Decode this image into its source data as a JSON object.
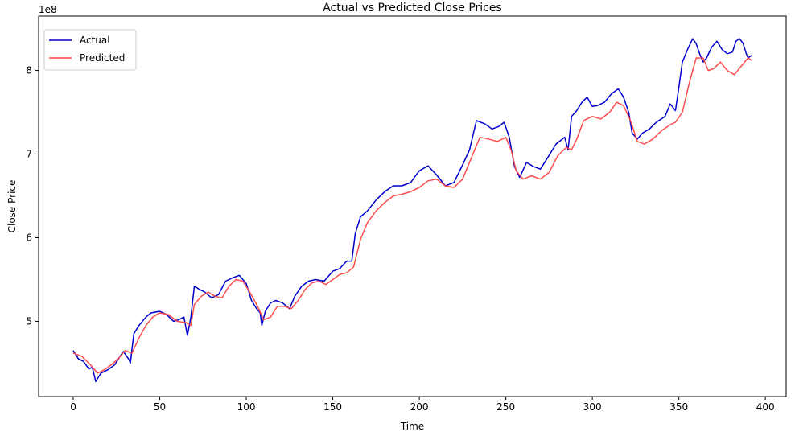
{
  "chart_data": {
    "type": "line",
    "title": "Actual vs Predicted Close Prices",
    "xlabel": "Time",
    "ylabel": "Close Price",
    "y_offset_label": "1e8",
    "xlim": [
      -20,
      412
    ],
    "ylim": [
      4.1,
      8.65
    ],
    "x_ticks": [
      0,
      50,
      100,
      150,
      200,
      250,
      300,
      350,
      400
    ],
    "y_ticks": [
      5,
      6,
      7,
      8
    ],
    "grid": false,
    "legend_position": "upper-left",
    "series": [
      {
        "name": "Actual",
        "color": "#0000cc",
        "points": [
          [
            0,
            4.65
          ],
          [
            3,
            4.55
          ],
          [
            6,
            4.52
          ],
          [
            9,
            4.43
          ],
          [
            11,
            4.45
          ],
          [
            13,
            4.28
          ],
          [
            16,
            4.38
          ],
          [
            20,
            4.42
          ],
          [
            24,
            4.48
          ],
          [
            27,
            4.58
          ],
          [
            29,
            4.64
          ],
          [
            32,
            4.55
          ],
          [
            33,
            4.5
          ],
          [
            35,
            4.85
          ],
          [
            38,
            4.95
          ],
          [
            42,
            5.05
          ],
          [
            45,
            5.1
          ],
          [
            50,
            5.12
          ],
          [
            54,
            5.08
          ],
          [
            58,
            5.0
          ],
          [
            61,
            5.02
          ],
          [
            64,
            5.05
          ],
          [
            66,
            4.83
          ],
          [
            68,
            5.05
          ],
          [
            70,
            5.42
          ],
          [
            73,
            5.38
          ],
          [
            76,
            5.35
          ],
          [
            80,
            5.28
          ],
          [
            84,
            5.32
          ],
          [
            88,
            5.48
          ],
          [
            92,
            5.52
          ],
          [
            96,
            5.55
          ],
          [
            100,
            5.45
          ],
          [
            103,
            5.25
          ],
          [
            106,
            5.15
          ],
          [
            108,
            5.1
          ],
          [
            109,
            4.95
          ],
          [
            111,
            5.12
          ],
          [
            114,
            5.22
          ],
          [
            117,
            5.25
          ],
          [
            121,
            5.22
          ],
          [
            125,
            5.15
          ],
          [
            128,
            5.3
          ],
          [
            132,
            5.42
          ],
          [
            136,
            5.48
          ],
          [
            140,
            5.5
          ],
          [
            145,
            5.48
          ],
          [
            150,
            5.6
          ],
          [
            154,
            5.63
          ],
          [
            158,
            5.72
          ],
          [
            161,
            5.72
          ],
          [
            163,
            6.05
          ],
          [
            166,
            6.25
          ],
          [
            170,
            6.32
          ],
          [
            175,
            6.45
          ],
          [
            180,
            6.55
          ],
          [
            185,
            6.62
          ],
          [
            190,
            6.62
          ],
          [
            195,
            6.66
          ],
          [
            200,
            6.8
          ],
          [
            205,
            6.86
          ],
          [
            210,
            6.75
          ],
          [
            215,
            6.62
          ],
          [
            220,
            6.66
          ],
          [
            225,
            6.87
          ],
          [
            229,
            7.05
          ],
          [
            233,
            7.4
          ],
          [
            238,
            7.36
          ],
          [
            242,
            7.3
          ],
          [
            246,
            7.33
          ],
          [
            249,
            7.38
          ],
          [
            252,
            7.2
          ],
          [
            255,
            6.85
          ],
          [
            258,
            6.72
          ],
          [
            262,
            6.9
          ],
          [
            266,
            6.85
          ],
          [
            270,
            6.82
          ],
          [
            274,
            6.95
          ],
          [
            279,
            7.12
          ],
          [
            284,
            7.2
          ],
          [
            286,
            7.05
          ],
          [
            288,
            7.45
          ],
          [
            291,
            7.52
          ],
          [
            294,
            7.62
          ],
          [
            297,
            7.68
          ],
          [
            300,
            7.57
          ],
          [
            303,
            7.58
          ],
          [
            307,
            7.62
          ],
          [
            311,
            7.72
          ],
          [
            315,
            7.78
          ],
          [
            318,
            7.68
          ],
          [
            321,
            7.5
          ],
          [
            323,
            7.25
          ],
          [
            326,
            7.18
          ],
          [
            329,
            7.25
          ],
          [
            333,
            7.3
          ],
          [
            337,
            7.38
          ],
          [
            342,
            7.45
          ],
          [
            345,
            7.6
          ],
          [
            348,
            7.52
          ],
          [
            350,
            7.8
          ],
          [
            352,
            8.1
          ],
          [
            355,
            8.25
          ],
          [
            358,
            8.38
          ],
          [
            360,
            8.32
          ],
          [
            362,
            8.2
          ],
          [
            364,
            8.1
          ],
          [
            366,
            8.15
          ],
          [
            369,
            8.28
          ],
          [
            372,
            8.35
          ],
          [
            375,
            8.25
          ],
          [
            378,
            8.2
          ],
          [
            381,
            8.22
          ],
          [
            383,
            8.35
          ],
          [
            385,
            8.38
          ],
          [
            387,
            8.33
          ],
          [
            389,
            8.2
          ],
          [
            390,
            8.15
          ],
          [
            392,
            8.18
          ]
        ]
      },
      {
        "name": "Predicted",
        "color": "#ff4444",
        "points": [
          [
            0,
            4.62
          ],
          [
            5,
            4.58
          ],
          [
            10,
            4.48
          ],
          [
            14,
            4.38
          ],
          [
            18,
            4.42
          ],
          [
            22,
            4.48
          ],
          [
            26,
            4.55
          ],
          [
            30,
            4.65
          ],
          [
            34,
            4.62
          ],
          [
            38,
            4.8
          ],
          [
            42,
            4.95
          ],
          [
            46,
            5.05
          ],
          [
            50,
            5.1
          ],
          [
            55,
            5.08
          ],
          [
            60,
            5.0
          ],
          [
            66,
            4.98
          ],
          [
            68,
            4.95
          ],
          [
            70,
            5.2
          ],
          [
            74,
            5.3
          ],
          [
            78,
            5.35
          ],
          [
            82,
            5.3
          ],
          [
            86,
            5.28
          ],
          [
            90,
            5.42
          ],
          [
            94,
            5.5
          ],
          [
            98,
            5.48
          ],
          [
            102,
            5.35
          ],
          [
            106,
            5.2
          ],
          [
            110,
            5.02
          ],
          [
            114,
            5.05
          ],
          [
            118,
            5.18
          ],
          [
            122,
            5.18
          ],
          [
            126,
            5.15
          ],
          [
            130,
            5.25
          ],
          [
            134,
            5.38
          ],
          [
            138,
            5.46
          ],
          [
            142,
            5.48
          ],
          [
            146,
            5.44
          ],
          [
            150,
            5.5
          ],
          [
            154,
            5.56
          ],
          [
            158,
            5.58
          ],
          [
            162,
            5.65
          ],
          [
            166,
            5.98
          ],
          [
            170,
            6.18
          ],
          [
            175,
            6.32
          ],
          [
            180,
            6.42
          ],
          [
            185,
            6.5
          ],
          [
            190,
            6.52
          ],
          [
            195,
            6.55
          ],
          [
            200,
            6.6
          ],
          [
            205,
            6.68
          ],
          [
            210,
            6.7
          ],
          [
            215,
            6.62
          ],
          [
            220,
            6.6
          ],
          [
            225,
            6.7
          ],
          [
            230,
            6.95
          ],
          [
            235,
            7.2
          ],
          [
            240,
            7.18
          ],
          [
            245,
            7.15
          ],
          [
            250,
            7.2
          ],
          [
            253,
            7.05
          ],
          [
            256,
            6.8
          ],
          [
            260,
            6.7
          ],
          [
            265,
            6.74
          ],
          [
            270,
            6.7
          ],
          [
            275,
            6.78
          ],
          [
            280,
            6.98
          ],
          [
            285,
            7.08
          ],
          [
            288,
            7.05
          ],
          [
            291,
            7.18
          ],
          [
            295,
            7.4
          ],
          [
            300,
            7.45
          ],
          [
            305,
            7.42
          ],
          [
            310,
            7.5
          ],
          [
            314,
            7.62
          ],
          [
            318,
            7.58
          ],
          [
            322,
            7.4
          ],
          [
            326,
            7.15
          ],
          [
            330,
            7.12
          ],
          [
            335,
            7.18
          ],
          [
            340,
            7.28
          ],
          [
            345,
            7.35
          ],
          [
            348,
            7.38
          ],
          [
            352,
            7.5
          ],
          [
            356,
            7.85
          ],
          [
            360,
            8.15
          ],
          [
            364,
            8.15
          ],
          [
            367,
            8.0
          ],
          [
            370,
            8.02
          ],
          [
            374,
            8.1
          ],
          [
            378,
            8.0
          ],
          [
            382,
            7.95
          ],
          [
            386,
            8.05
          ],
          [
            390,
            8.15
          ],
          [
            392,
            8.12
          ]
        ]
      }
    ]
  }
}
